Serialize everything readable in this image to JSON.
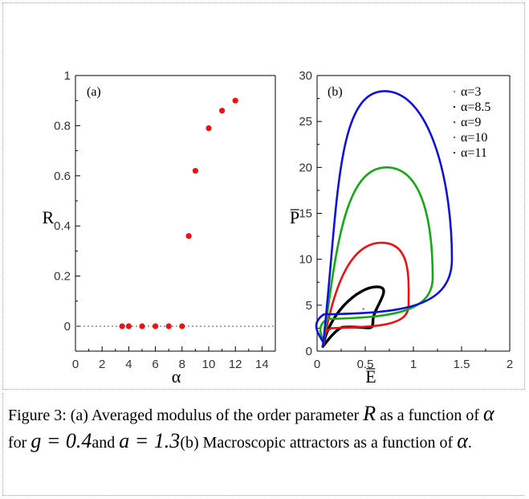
{
  "chart_data": [
    {
      "type": "scatter",
      "panel_label": "(a)",
      "xlabel": "α",
      "ylabel": "R",
      "xlim": [
        0,
        15
      ],
      "ylim": [
        0,
        1
      ],
      "xticks": [
        "0",
        "2",
        "4",
        "6",
        "8",
        "10",
        "12",
        "14"
      ],
      "yticks": [
        "0",
        "0.2",
        "0.4",
        "0.6",
        "0.8",
        "1"
      ],
      "grid": false,
      "reference_line": {
        "y": 0,
        "style": "dotted"
      },
      "marker_color": "#ee1111",
      "series": [
        {
          "x": [
            3.5,
            4,
            5,
            6,
            7,
            8,
            8.5,
            9,
            10,
            11,
            12
          ],
          "y": [
            0,
            0,
            0,
            0,
            0,
            0,
            0.36,
            0.62,
            0.79,
            0.86,
            0.9
          ]
        }
      ]
    },
    {
      "type": "line",
      "panel_label": "(b)",
      "xlabel": "E̅",
      "ylabel": "P̅",
      "xlim": [
        0,
        2
      ],
      "ylim": [
        0,
        30
      ],
      "xticks": [
        "0",
        "0.5",
        "1",
        "1.5",
        "2"
      ],
      "yticks": [
        "0",
        "5",
        "10",
        "15",
        "20",
        "25",
        "30"
      ],
      "grid": false,
      "legend_position": "top-right",
      "series": [
        {
          "name": "α=3",
          "color": "#e06080",
          "shape": "point",
          "x": [
            0.48
          ],
          "y": [
            4.6
          ]
        },
        {
          "name": "α=8.5",
          "color": "#000000",
          "shape": "loop",
          "x": [
            0.06,
            0.62,
            0.58,
            0.26
          ],
          "y": [
            0.5,
            7.0,
            3.3,
            2.6
          ]
        },
        {
          "name": "α=9",
          "color": "#ee1111",
          "shape": "loop",
          "x": [
            0.06,
            0.67,
            0.95,
            0.15
          ],
          "y": [
            0.5,
            11.8,
            5.0,
            2.5
          ]
        },
        {
          "name": "α=10",
          "color": "#11aa11",
          "shape": "loop",
          "x": [
            0.06,
            0.72,
            1.2,
            0.11
          ],
          "y": [
            0.5,
            20.0,
            8.0,
            3.5
          ]
        },
        {
          "name": "α=11",
          "color": "#1111dd",
          "shape": "loop",
          "x": [
            0.06,
            0.7,
            1.4,
            0.07
          ],
          "y": [
            0.5,
            28.3,
            10.0,
            4.0
          ]
        }
      ]
    }
  ],
  "caption": {
    "p1": "Figure 3: (a) Averaged modulus of the order parameter ",
    "sym_R": "R",
    "p2": " as a function of ",
    "sym_alpha": "α",
    "p3": " for ",
    "eq_g": "g = 0.4",
    "p4": "and ",
    "eq_a": "a = 1.3",
    "p5": "(b) Macroscopic attractors as a function of ",
    "sym_alpha2": "α",
    "p6": "."
  }
}
